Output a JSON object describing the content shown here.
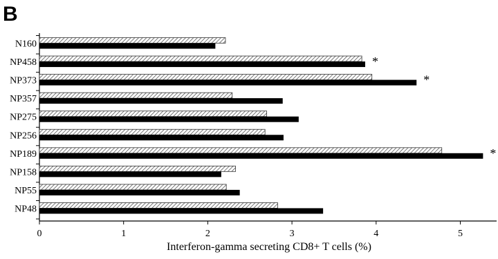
{
  "panel_label": "B",
  "chart_data": {
    "type": "bar",
    "orientation": "horizontal",
    "categories": [
      "N160",
      "NP458",
      "NP373",
      "NP357",
      "NP275",
      "NP256",
      "NP189",
      "NP158",
      "NP55",
      "NP48"
    ],
    "series": [
      {
        "pattern": "hatched",
        "values": [
          2.21,
          3.83,
          3.95,
          2.29,
          2.7,
          2.68,
          4.78,
          2.33,
          2.22,
          2.83
        ]
      },
      {
        "pattern": "solid-black",
        "values": [
          2.09,
          3.87,
          4.48,
          2.89,
          3.08,
          2.9,
          5.27,
          2.16,
          2.38,
          3.37
        ]
      }
    ],
    "significance_marks": [
      "",
      "*",
      "*",
      "",
      "",
      "",
      "*",
      "",
      "",
      ""
    ],
    "xlabel": "Interferon-gamma secreting CD8+ T cells (%)",
    "ylabel": "",
    "xlim": [
      0,
      5.4
    ],
    "xticks": [
      "0",
      "1",
      "2",
      "3",
      "4",
      "5"
    ],
    "grid": false,
    "colors": {
      "solid": "#000000",
      "hatch_line": "#555555",
      "hatch_bg": "#ffffff"
    }
  }
}
